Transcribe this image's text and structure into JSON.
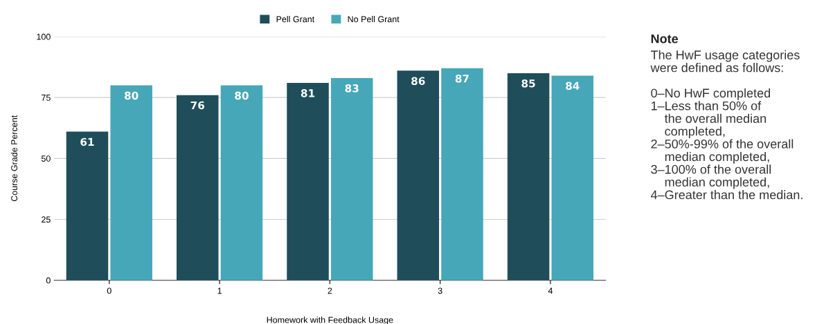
{
  "chart_data": {
    "type": "bar",
    "xlabel": "Homework with Feedback Usage",
    "ylabel": "Course Grade Percent",
    "categories": [
      "0",
      "1",
      "2",
      "3",
      "4"
    ],
    "series": [
      {
        "name": "Pell Grant",
        "color": "#1f4e5a",
        "values": [
          61,
          76,
          81,
          86,
          85
        ]
      },
      {
        "name": "No Pell Grant",
        "color": "#46a7b8",
        "values": [
          80,
          80,
          83,
          87,
          84
        ]
      }
    ],
    "ylim": [
      0,
      100
    ],
    "yticks": [
      0,
      25,
      50,
      75,
      100
    ],
    "grid": "y",
    "legend": "top",
    "data_labels": true,
    "annotations": [
      "Note",
      "The HwF usage categories\nwere defined as follows:\n\n0–No HwF completed\n1–Less than 50% of\n    the overall median\n    completed,\n2–50%-99% of the overall\n    median completed,\n3–100% of the overall\n    median completed,\n4–Greater than the median."
    ]
  }
}
